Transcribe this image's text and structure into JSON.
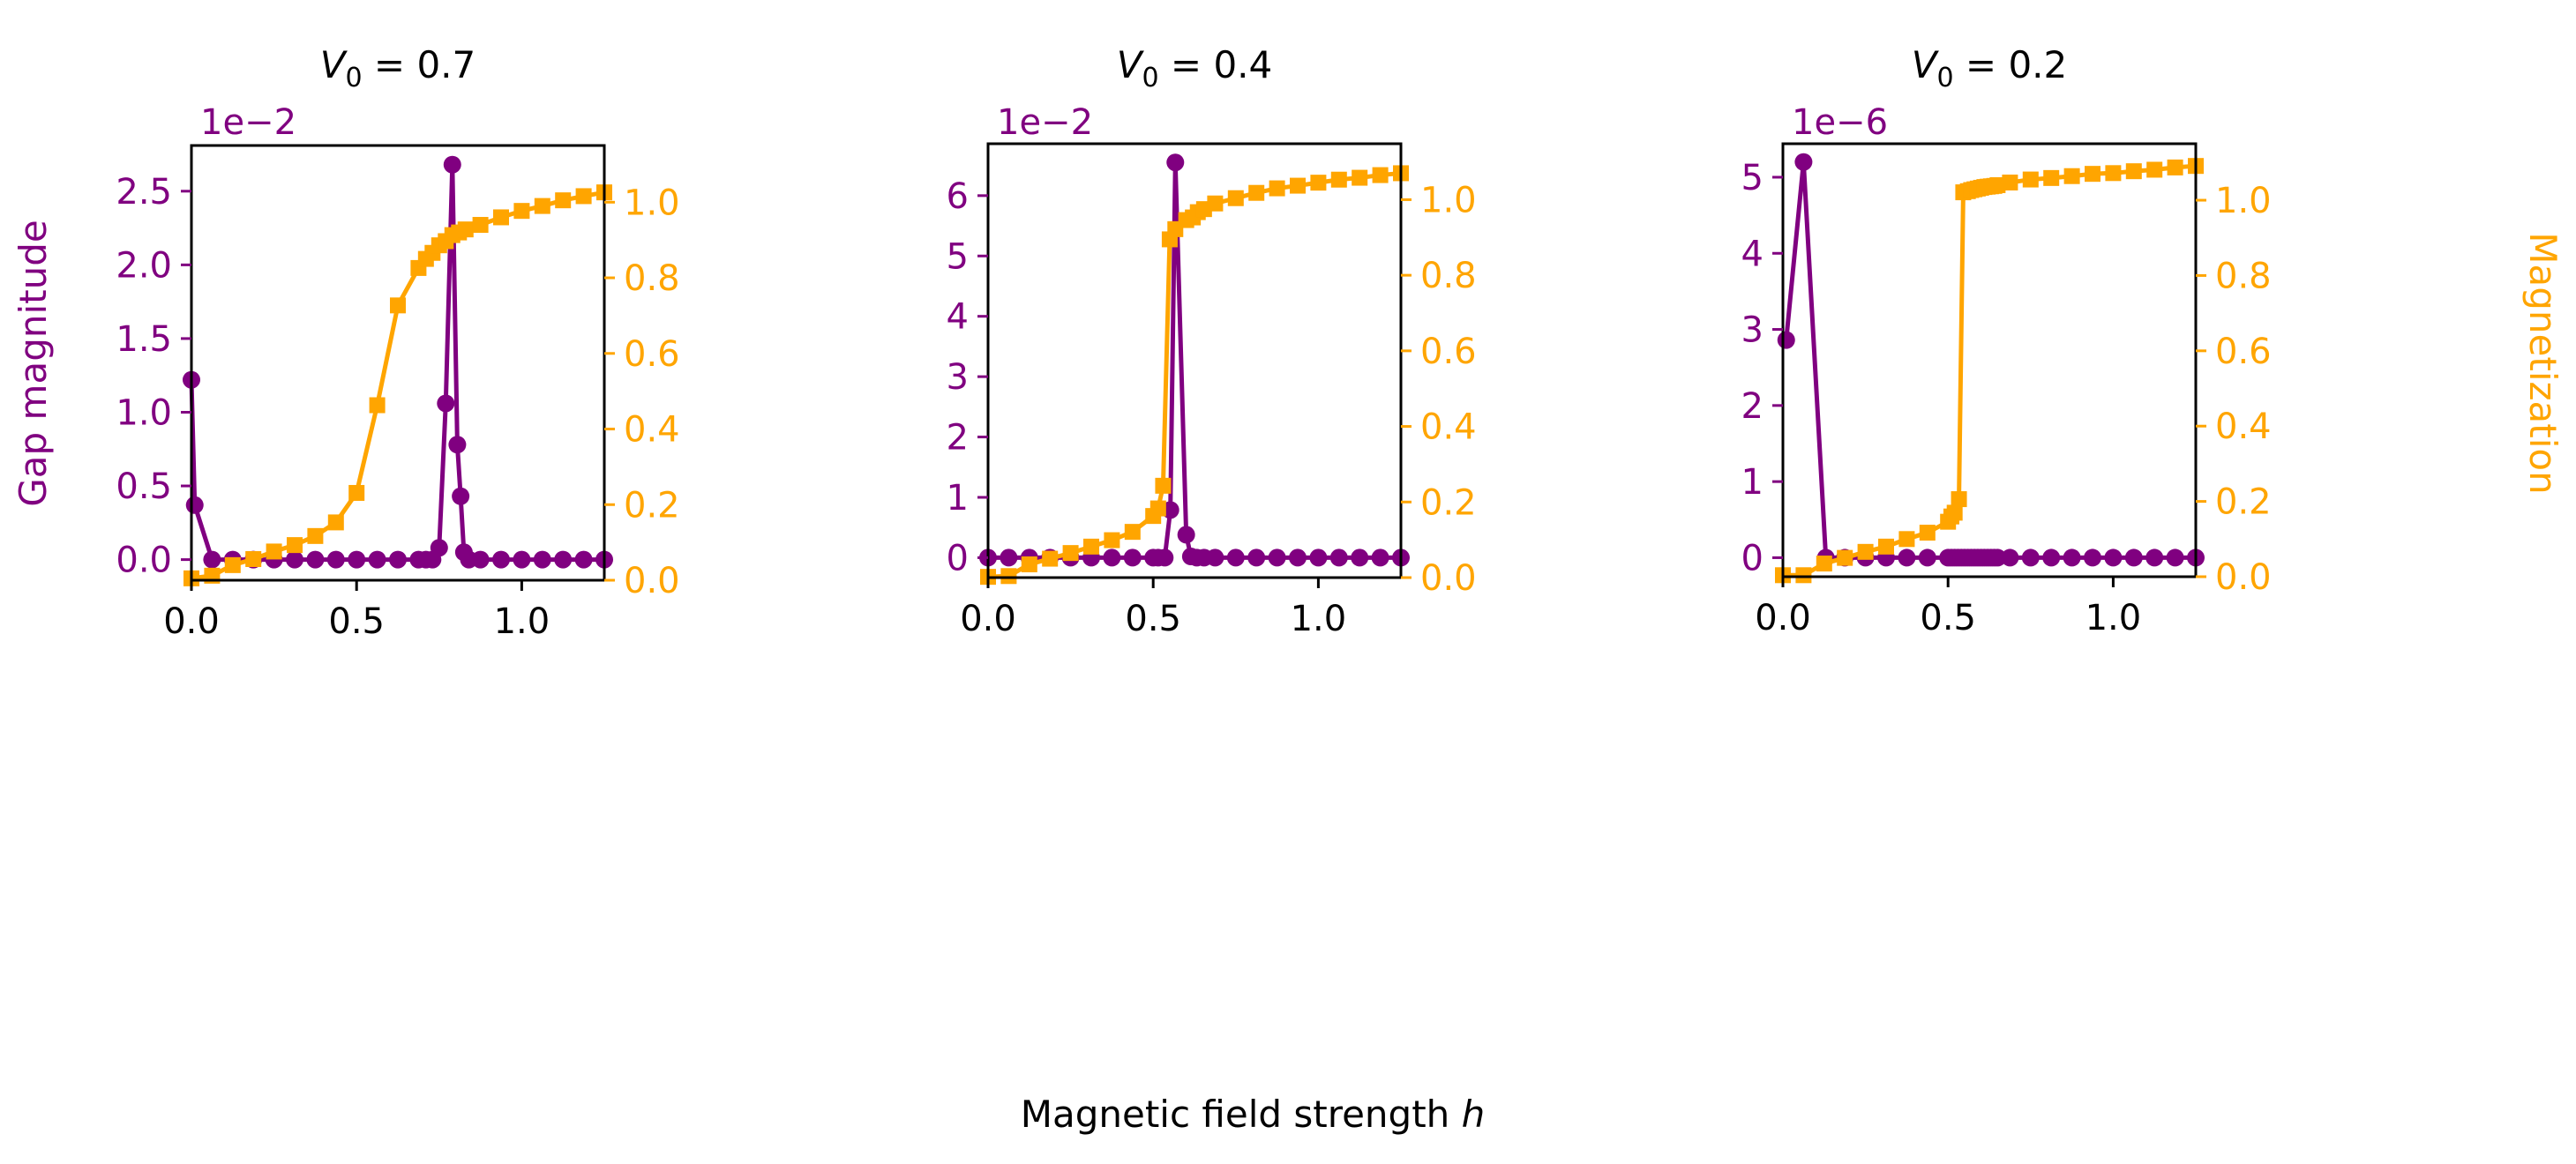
{
  "figure": {
    "xlabel": "Magnetic field strength h",
    "xlabel_text": "Magnetic field strength ",
    "xlabel_var": "h",
    "left_ylabel": "Gap magnitude",
    "right_ylabel": "Magnetization",
    "colors": {
      "gap": "#800080",
      "magnetization": "#FFA500",
      "axes": "#000000"
    }
  },
  "chart_data": [
    {
      "type": "line",
      "title": "V0 = 0.7",
      "title_var": "V",
      "title_sub": "0",
      "title_rest": " = 0.7",
      "xlim": [
        0,
        1.25
      ],
      "xticks": [
        0.0,
        0.5,
        1.0
      ],
      "xtick_labels": [
        "0.0",
        "0.5",
        "1.0"
      ],
      "left_axis": {
        "label": "Gap magnitude",
        "offset_text": "1e−2",
        "ylim": [
          -0.14,
          2.81
        ],
        "ticks": [
          0,
          0.5,
          1.0,
          1.5,
          2.0,
          2.5
        ],
        "tick_labels": [
          "0.0",
          "0.5",
          "1.0",
          "1.5",
          "2.0",
          "2.5"
        ]
      },
      "right_axis": {
        "label": "",
        "ylim": [
          0,
          1.15
        ],
        "ticks": [
          0,
          0.2,
          0.4,
          0.6,
          0.8,
          1.0
        ],
        "tick_labels": [
          "0.0",
          "0.2",
          "0.4",
          "0.6",
          "0.8",
          "1.0"
        ]
      },
      "series": [
        {
          "axis": "left",
          "marker": "circle",
          "color": "#800080",
          "x": [
            0.0,
            0.01,
            0.0625,
            0.125,
            0.1875,
            0.25,
            0.3125,
            0.375,
            0.4375,
            0.5,
            0.5625,
            0.625,
            0.6875,
            0.71,
            0.73,
            0.75,
            0.77,
            0.79,
            0.805,
            0.815,
            0.825,
            0.84,
            0.875,
            0.9375,
            1.0,
            1.0625,
            1.125,
            1.1875,
            1.25
          ],
          "y": [
            1.22,
            0.37,
            0,
            0,
            0,
            0,
            0,
            0,
            0,
            0,
            0,
            0,
            0,
            0,
            0,
            0.08,
            1.06,
            2.68,
            0.78,
            0.43,
            0.05,
            0,
            0,
            0,
            0,
            0,
            0,
            0,
            0
          ]
        },
        {
          "axis": "right",
          "marker": "square",
          "color": "#FFA500",
          "x": [
            0.0,
            0.0625,
            0.125,
            0.1875,
            0.25,
            0.3125,
            0.375,
            0.4375,
            0.5,
            0.5625,
            0.625,
            0.6875,
            0.71,
            0.73,
            0.75,
            0.77,
            0.79,
            0.81,
            0.83,
            0.875,
            0.9375,
            1.0,
            1.0625,
            1.125,
            1.1875,
            1.25
          ],
          "y": [
            0.005,
            0.012,
            0.04,
            0.056,
            0.076,
            0.093,
            0.117,
            0.153,
            0.231,
            0.463,
            0.727,
            0.826,
            0.85,
            0.866,
            0.886,
            0.897,
            0.913,
            0.92,
            0.928,
            0.94,
            0.96,
            0.977,
            0.99,
            1.005,
            1.016,
            1.026
          ]
        }
      ]
    },
    {
      "type": "line",
      "title": "V0 = 0.4",
      "title_var": "V",
      "title_sub": "0",
      "title_rest": " = 0.4",
      "xlim": [
        0,
        1.25
      ],
      "xticks": [
        0.0,
        0.5,
        1.0
      ],
      "xtick_labels": [
        "0.0",
        "0.5",
        "1.0"
      ],
      "left_axis": {
        "label": "",
        "offset_text": "1e−2",
        "ylim": [
          -0.33,
          6.86
        ],
        "ticks": [
          0,
          1,
          2,
          3,
          4,
          5,
          6
        ],
        "tick_labels": [
          "0",
          "1",
          "2",
          "3",
          "4",
          "5",
          "6"
        ]
      },
      "right_axis": {
        "label": "",
        "ylim": [
          0,
          1.148
        ],
        "ticks": [
          0,
          0.2,
          0.4,
          0.6,
          0.8,
          1.0
        ],
        "tick_labels": [
          "0.0",
          "0.2",
          "0.4",
          "0.6",
          "0.8",
          "1.0"
        ]
      },
      "series": [
        {
          "axis": "left",
          "marker": "circle",
          "color": "#800080",
          "x": [
            0.0,
            0.0625,
            0.125,
            0.1875,
            0.25,
            0.3125,
            0.375,
            0.4375,
            0.5,
            0.515,
            0.535,
            0.552,
            0.567,
            0.6,
            0.614,
            0.632,
            0.654,
            0.6875,
            0.75,
            0.8125,
            0.875,
            0.9375,
            1.0,
            1.0625,
            1.125,
            1.1875,
            1.25
          ],
          "y": [
            0,
            0,
            0,
            0,
            0,
            0,
            0,
            0,
            0,
            0,
            0,
            0.79,
            6.55,
            0.38,
            0.02,
            0,
            0,
            0,
            0,
            0,
            0,
            0,
            0,
            0,
            0,
            0,
            0
          ]
        },
        {
          "axis": "right",
          "marker": "square",
          "color": "#FFA500",
          "x": [
            0.0,
            0.0625,
            0.125,
            0.1875,
            0.25,
            0.3125,
            0.375,
            0.4375,
            0.5,
            0.515,
            0.53,
            0.55,
            0.567,
            0.6,
            0.62,
            0.635,
            0.654,
            0.6875,
            0.75,
            0.8125,
            0.875,
            0.9375,
            1.0,
            1.0625,
            1.125,
            1.1875,
            1.25
          ],
          "y": [
            0.002,
            0.004,
            0.035,
            0.05,
            0.065,
            0.082,
            0.099,
            0.121,
            0.163,
            0.183,
            0.243,
            0.895,
            0.922,
            0.946,
            0.953,
            0.967,
            0.975,
            0.99,
            1.004,
            1.018,
            1.03,
            1.037,
            1.045,
            1.053,
            1.058,
            1.065,
            1.07
          ]
        }
      ]
    },
    {
      "type": "line",
      "title": "V0 = 0.2",
      "title_var": "V",
      "title_sub": "0",
      "title_rest": " = 0.2",
      "xlim": [
        0,
        1.25
      ],
      "xticks": [
        0.0,
        0.5,
        1.0
      ],
      "xtick_labels": [
        "0.0",
        "0.5",
        "1.0"
      ],
      "left_axis": {
        "label": "",
        "offset_text": "1e−6",
        "ylim": [
          -0.25,
          5.44
        ],
        "ticks": [
          0,
          1,
          2,
          3,
          4,
          5
        ],
        "tick_labels": [
          "0",
          "1",
          "2",
          "3",
          "4",
          "5"
        ]
      },
      "right_axis": {
        "label": "Magnetization",
        "ylim": [
          0,
          1.15
        ],
        "ticks": [
          0,
          0.2,
          0.4,
          0.6,
          0.8,
          1.0
        ],
        "tick_labels": [
          "0.0",
          "0.2",
          "0.4",
          "0.6",
          "0.8",
          "1.0"
        ]
      },
      "series": [
        {
          "axis": "left",
          "marker": "circle",
          "color": "#800080",
          "x": [
            0.01,
            0.0625,
            0.13,
            0.1875,
            0.25,
            0.3125,
            0.375,
            0.4375,
            0.5,
            0.51,
            0.52,
            0.53,
            0.54,
            0.55,
            0.56,
            0.57,
            0.58,
            0.59,
            0.6,
            0.61,
            0.62,
            0.63,
            0.64,
            0.65,
            0.6875,
            0.75,
            0.8125,
            0.875,
            0.9375,
            1.0,
            1.0625,
            1.125,
            1.1875,
            1.25
          ],
          "y": [
            2.86,
            5.2,
            0,
            0,
            0,
            0,
            0,
            0,
            0,
            0,
            0,
            0,
            0,
            0,
            0,
            0,
            0,
            0,
            0,
            0,
            0,
            0,
            0,
            0,
            0,
            0,
            0,
            0,
            0,
            0,
            0,
            0,
            0,
            0
          ]
        },
        {
          "axis": "right",
          "marker": "square",
          "color": "#FFA500",
          "x": [
            0.0,
            0.0625,
            0.125,
            0.1875,
            0.25,
            0.3125,
            0.375,
            0.4375,
            0.5,
            0.51,
            0.52,
            0.533,
            0.546,
            0.56,
            0.57,
            0.58,
            0.59,
            0.6,
            0.61,
            0.62,
            0.63,
            0.64,
            0.65,
            0.6875,
            0.75,
            0.8125,
            0.875,
            0.9375,
            1.0,
            1.0625,
            1.125,
            1.1875,
            1.25
          ],
          "y": [
            0.004,
            0.004,
            0.035,
            0.05,
            0.066,
            0.08,
            0.1,
            0.117,
            0.146,
            0.16,
            0.17,
            0.206,
            1.021,
            1.024,
            1.027,
            1.029,
            1.031,
            1.033,
            1.035,
            1.036,
            1.037,
            1.038,
            1.04,
            1.047,
            1.055,
            1.059,
            1.064,
            1.07,
            1.072,
            1.077,
            1.081,
            1.087,
            1.091
          ]
        }
      ]
    }
  ]
}
